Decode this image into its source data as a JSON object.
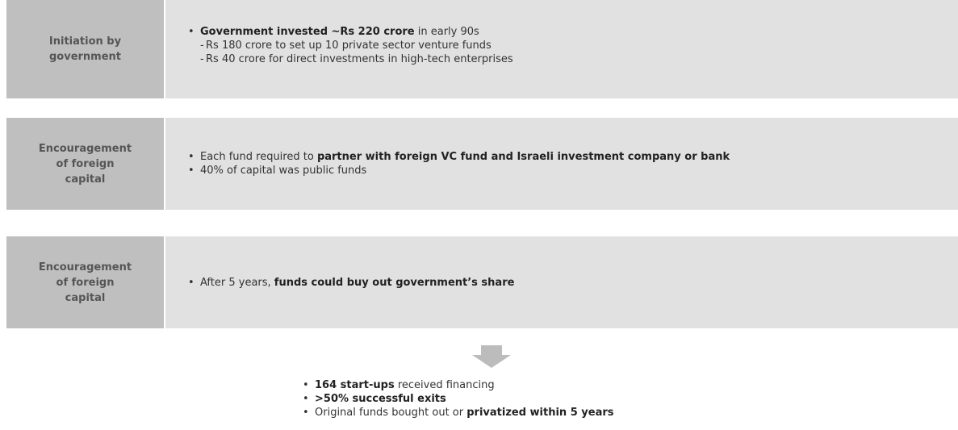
{
  "rows": [
    {
      "label": "Initiation by government",
      "bullets": [
        {
          "segments": [
            {
              "text": "Government invested ~Rs 220 crore",
              "bold": true
            },
            {
              "text": " in early 90s"
            }
          ],
          "sub": [
            "Rs 180 crore to set up 10 private sector venture funds",
            "Rs 40 crore for direct investments in high-tech enterprises"
          ]
        }
      ]
    },
    {
      "label": "Encouragement of foreign capital",
      "bullets": [
        {
          "segments": [
            {
              "text": "Each fund required to "
            },
            {
              "text": "partner with foreign VC fund and Israeli investment company or bank",
              "bold": true
            }
          ]
        },
        {
          "segments": [
            {
              "text": "40% of capital was public funds"
            }
          ]
        }
      ]
    },
    {
      "label": "Encouragement of foreign capital",
      "bullets": [
        {
          "segments": [
            {
              "text": "After 5 years, "
            },
            {
              "text": "funds could buy out government’s share",
              "bold": true
            }
          ]
        }
      ]
    }
  ],
  "results": [
    {
      "segments": [
        {
          "text": "164 start-ups",
          "bold": true
        },
        {
          "text": " received financing"
        }
      ]
    },
    {
      "segments": [
        {
          "text": ">50% successful exits",
          "bold": true
        }
      ]
    },
    {
      "segments": [
        {
          "text": "Original funds bought out or "
        },
        {
          "text": "privatized within 5 years",
          "bold": true
        }
      ]
    }
  ]
}
